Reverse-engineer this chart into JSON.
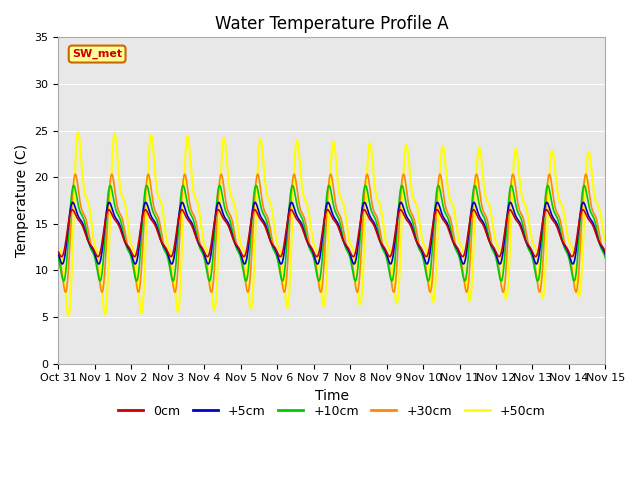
{
  "title": "Water Temperature Profile A",
  "xlabel": "Time",
  "ylabel": "Temperature (C)",
  "xlim": [
    0,
    15
  ],
  "ylim": [
    0,
    35
  ],
  "yticks": [
    0,
    5,
    10,
    15,
    20,
    25,
    30,
    35
  ],
  "xtick_labels": [
    "Oct 31",
    "Nov 1",
    "Nov 2",
    "Nov 3",
    "Nov 4",
    "Nov 5",
    "Nov 6",
    "Nov 7",
    "Nov 8",
    "Nov 9",
    "Nov 10",
    "Nov 11",
    "Nov 12",
    "Nov 13",
    "Nov 14",
    "Nov 15"
  ],
  "series": {
    "0cm": {
      "color": "#cc0000",
      "linewidth": 1.2
    },
    "+5cm": {
      "color": "#0000cc",
      "linewidth": 1.2
    },
    "+10cm": {
      "color": "#00cc00",
      "linewidth": 1.2
    },
    "+30cm": {
      "color": "#ff8800",
      "linewidth": 1.2
    },
    "+50cm": {
      "color": "#ffff00",
      "linewidth": 1.5
    }
  },
  "legend_label": "SW_met",
  "legend_bg": "#ffff99",
  "legend_border": "#cc6600",
  "background_color": "#e8e8e8",
  "figure_bg": "#ffffff",
  "title_fontsize": 12,
  "axis_label_fontsize": 10,
  "tick_fontsize": 8,
  "num_points": 1500,
  "days": 15
}
